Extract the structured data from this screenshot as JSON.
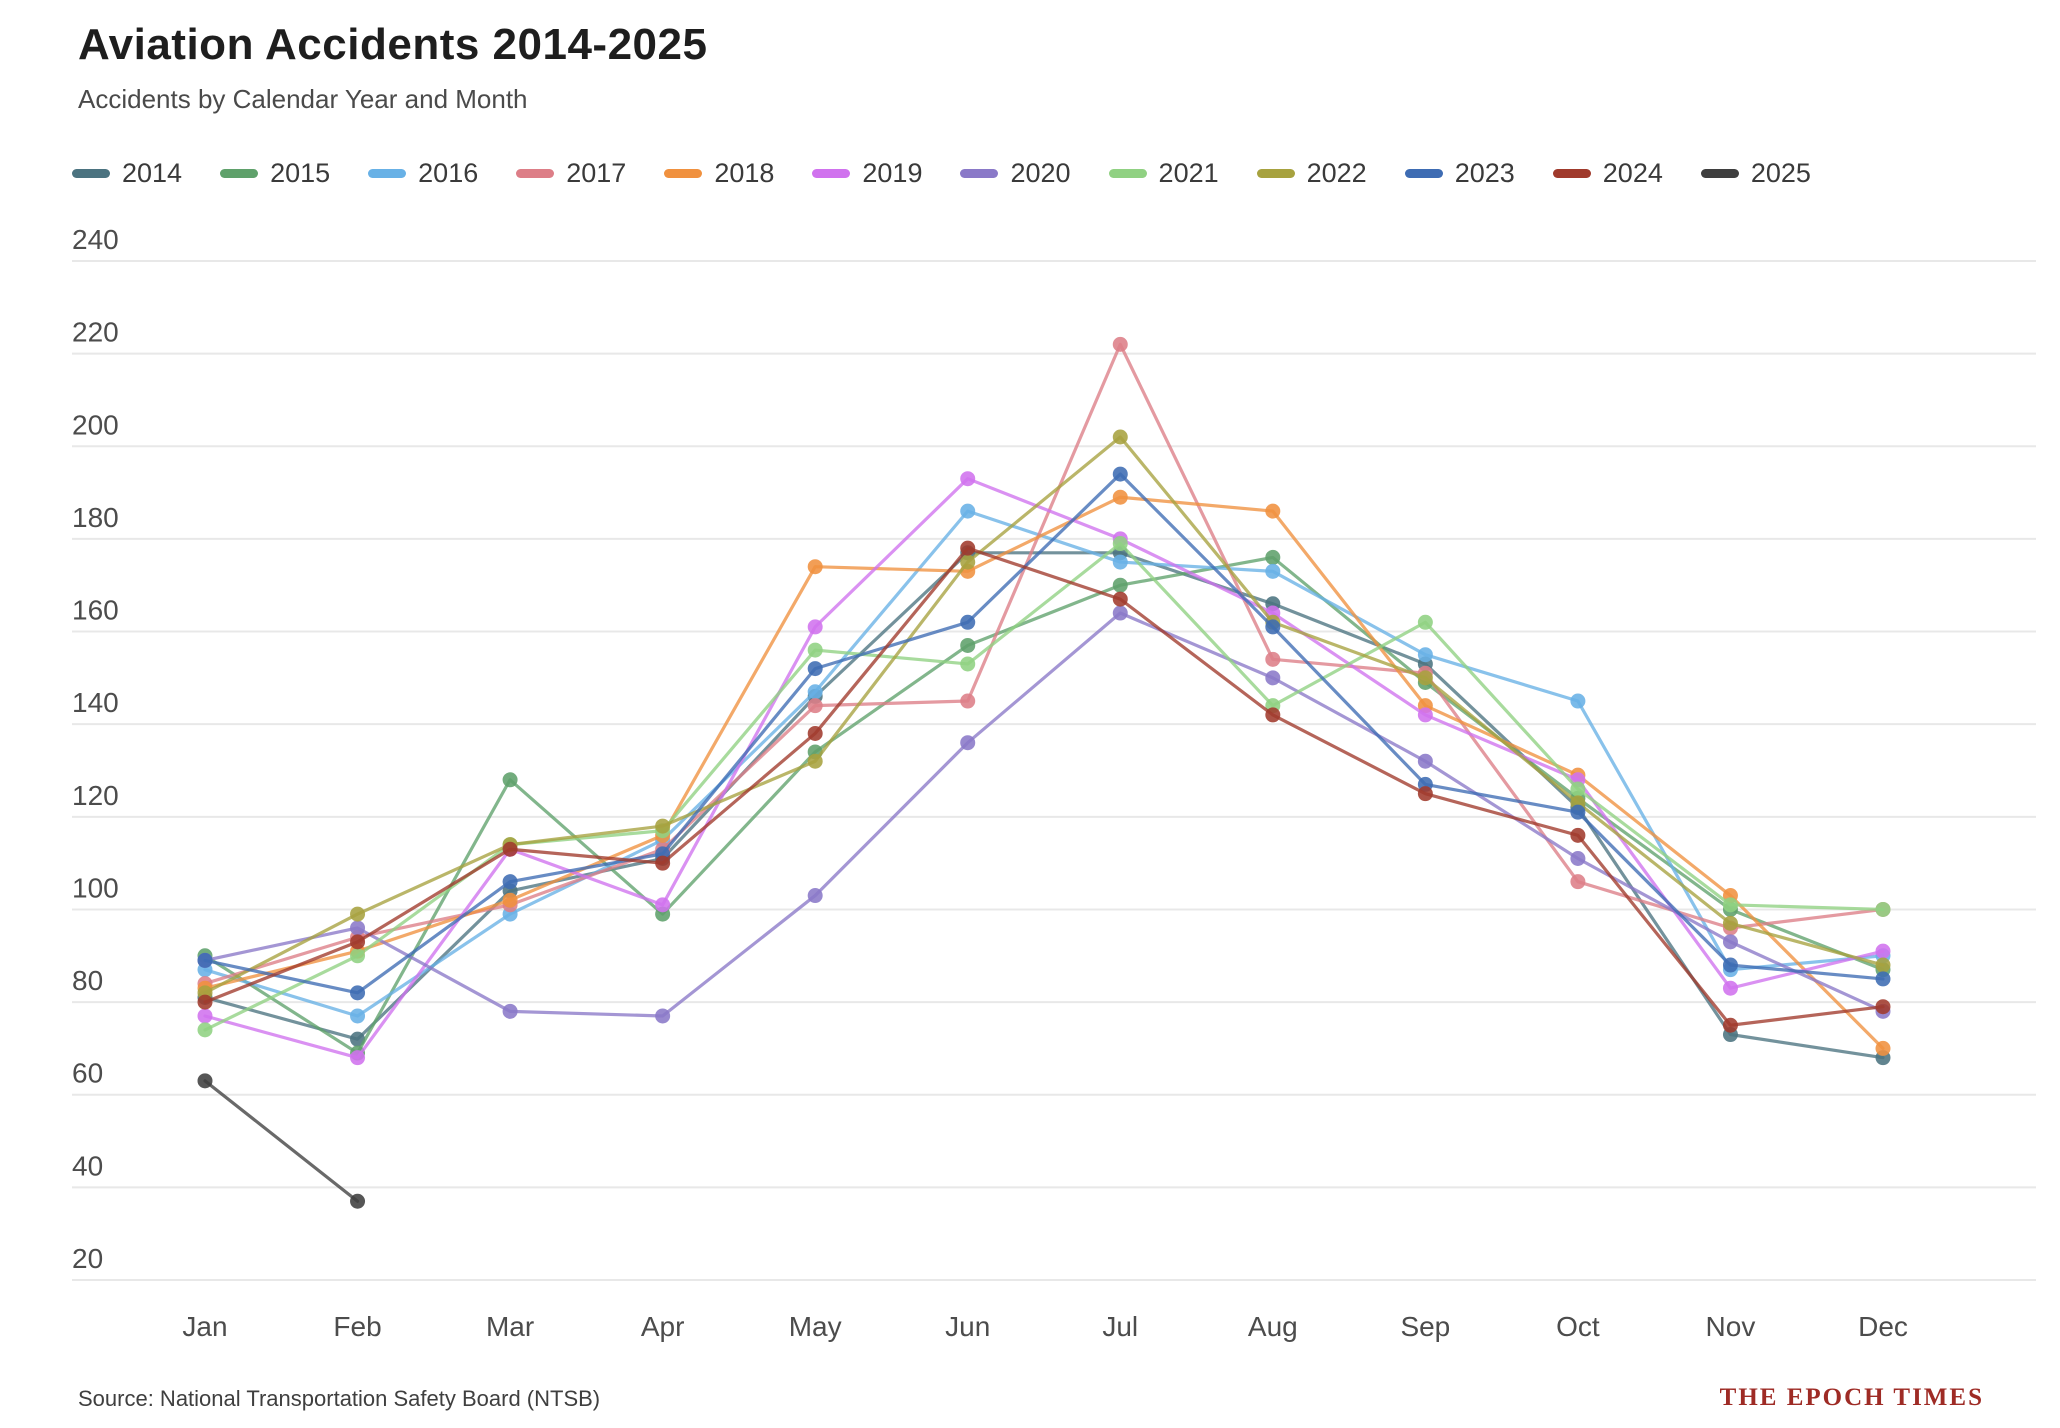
{
  "header": {
    "title": "Aviation Accidents 2014-2025",
    "subtitle": "Accidents by Calendar Year and Month"
  },
  "footer": {
    "source": "Source: National Transportation Safety Board (NTSB)",
    "brand": "THE EPOCH TIMES"
  },
  "chart_data": {
    "type": "line",
    "title": "Aviation Accidents 2014-2025",
    "subtitle": "Accidents by Calendar Year and Month",
    "categories": [
      "Jan",
      "Feb",
      "Mar",
      "Apr",
      "May",
      "Jun",
      "Jul",
      "Aug",
      "Sep",
      "Oct",
      "Nov",
      "Dec"
    ],
    "xlabel": "",
    "ylabel": "",
    "ylim": [
      20,
      240
    ],
    "yticks": [
      20,
      40,
      60,
      80,
      100,
      120,
      140,
      160,
      180,
      200,
      220,
      240
    ],
    "grid": true,
    "legend_position": "top",
    "marker": "circle",
    "series": [
      {
        "name": "2014",
        "color": "#4b7380",
        "values": [
          81,
          72,
          104,
          111,
          146,
          177,
          177,
          166,
          153,
          122,
          73,
          68
        ]
      },
      {
        "name": "2015",
        "color": "#5fa16b",
        "values": [
          90,
          69,
          128,
          99,
          134,
          157,
          170,
          176,
          149,
          124,
          100,
          87
        ]
      },
      {
        "name": "2016",
        "color": "#68b1e6",
        "values": [
          87,
          77,
          99,
          115,
          147,
          186,
          175,
          173,
          155,
          145,
          87,
          90
        ]
      },
      {
        "name": "2017",
        "color": "#dd7e87",
        "values": [
          84,
          94,
          101,
          113,
          144,
          145,
          222,
          154,
          151,
          106,
          96,
          100
        ]
      },
      {
        "name": "2018",
        "color": "#f0913f",
        "values": [
          83,
          91,
          102,
          116,
          174,
          173,
          189,
          186,
          144,
          129,
          103,
          70
        ]
      },
      {
        "name": "2019",
        "color": "#d072ee",
        "values": [
          77,
          68,
          113,
          101,
          161,
          193,
          180,
          164,
          142,
          128,
          83,
          91
        ]
      },
      {
        "name": "2020",
        "color": "#8a79c8",
        "values": [
          89,
          96,
          78,
          77,
          103,
          136,
          164,
          150,
          132,
          111,
          93,
          78
        ]
      },
      {
        "name": "2021",
        "color": "#90d182",
        "values": [
          74,
          90,
          114,
          117,
          156,
          153,
          179,
          144,
          162,
          126,
          101,
          100
        ]
      },
      {
        "name": "2022",
        "color": "#a7a23f",
        "values": [
          82,
          99,
          114,
          118,
          132,
          175,
          202,
          162,
          150,
          123,
          97,
          88
        ]
      },
      {
        "name": "2023",
        "color": "#3e6cb3",
        "values": [
          89,
          82,
          106,
          112,
          152,
          162,
          194,
          161,
          127,
          121,
          88,
          85
        ]
      },
      {
        "name": "2024",
        "color": "#a03a2c",
        "values": [
          80,
          93,
          113,
          110,
          138,
          178,
          167,
          142,
          125,
          116,
          75,
          79
        ]
      },
      {
        "name": "2025",
        "color": "#3f3f3f",
        "values": [
          63,
          37,
          null,
          null,
          null,
          null,
          null,
          null,
          null,
          null,
          null,
          null
        ]
      }
    ]
  }
}
